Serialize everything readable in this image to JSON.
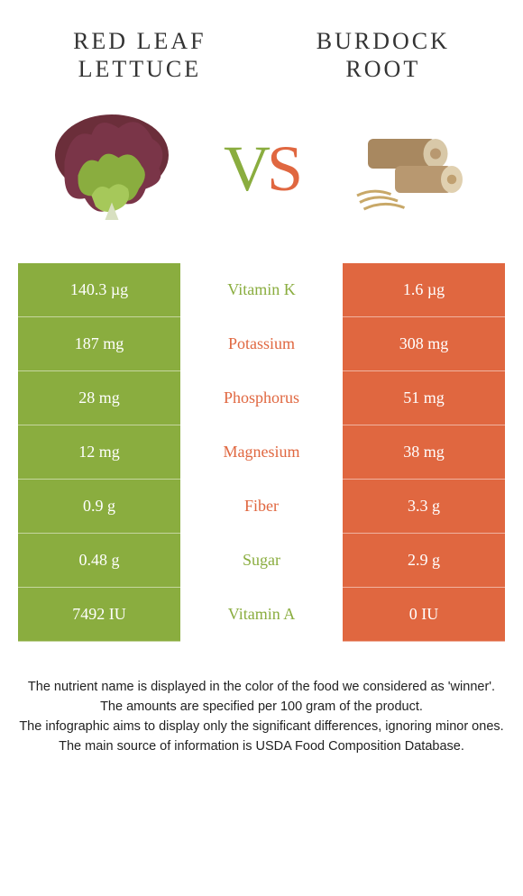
{
  "colors": {
    "left_food": "#8aad3f",
    "right_food": "#e06740",
    "background": "#ffffff",
    "footer_text": "#222222"
  },
  "left": {
    "title_line1": "Red leaf",
    "title_line2": "lettuce"
  },
  "right": {
    "title_line1": "Burdock",
    "title_line2": "root"
  },
  "vs": {
    "v": "V",
    "s": "S"
  },
  "rows": [
    {
      "left": "140.3 µg",
      "label": "Vitamin K",
      "right": "1.6 µg",
      "winner": "left"
    },
    {
      "left": "187 mg",
      "label": "Potassium",
      "right": "308 mg",
      "winner": "right"
    },
    {
      "left": "28 mg",
      "label": "Phosphorus",
      "right": "51 mg",
      "winner": "right"
    },
    {
      "left": "12 mg",
      "label": "Magnesium",
      "right": "38 mg",
      "winner": "right"
    },
    {
      "left": "0.9 g",
      "label": "Fiber",
      "right": "3.3 g",
      "winner": "right"
    },
    {
      "left": "0.48 g",
      "label": "Sugar",
      "right": "2.9 g",
      "winner": "left"
    },
    {
      "left": "7492 IU",
      "label": "Vitamin A",
      "right": "0 IU",
      "winner": "left"
    }
  ],
  "footer": {
    "l1": "The nutrient name is displayed in the color of the food we considered as 'winner'.",
    "l2": "The amounts are specified per 100 gram of the product.",
    "l3": "The infographic aims to display only the significant differences, ignoring minor ones.",
    "l4": "The main source of information is USDA Food Composition Database."
  }
}
